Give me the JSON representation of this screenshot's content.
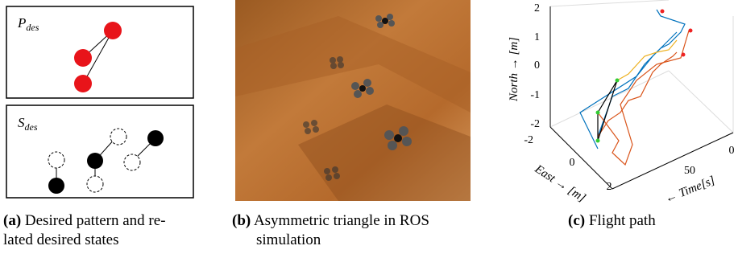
{
  "panels": [
    {
      "label": "(a)",
      "caption": [
        "Desired pattern and re-",
        "lated desired states"
      ],
      "boxes": [
        {
          "symbol": "P",
          "subscript": "des"
        },
        {
          "symbol": "S",
          "subscript": "des"
        }
      ]
    },
    {
      "label": "(b)",
      "caption": [
        "Asymmetric triangle in ROS",
        "simulation"
      ]
    },
    {
      "label": "(c)",
      "caption": [
        "Flight path"
      ],
      "axes": {
        "z_label": "North → [m]",
        "x_label": "East → [m]",
        "y_label": "← Time[s]",
        "z_ticks": [
          "2",
          "1",
          "0",
          "-1",
          "-2"
        ],
        "x_ticks": [
          "-2",
          "0",
          "2"
        ],
        "y_ticks": [
          "0",
          "50"
        ]
      }
    }
  ]
}
